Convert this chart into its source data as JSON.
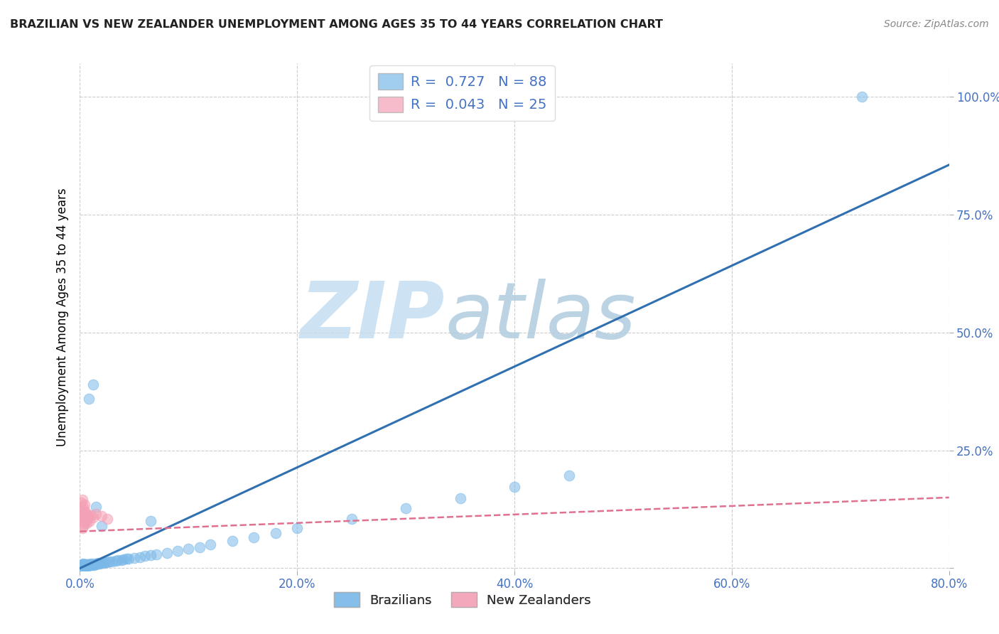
{
  "title": "BRAZILIAN VS NEW ZEALANDER UNEMPLOYMENT AMONG AGES 35 TO 44 YEARS CORRELATION CHART",
  "source": "Source: ZipAtlas.com",
  "ylabel": "Unemployment Among Ages 35 to 44 years",
  "xlim": [
    0.0,
    0.8
  ],
  "ylim": [
    -0.005,
    1.07
  ],
  "xticks": [
    0.0,
    0.2,
    0.4,
    0.6,
    0.8
  ],
  "yticks": [
    0.0,
    0.25,
    0.5,
    0.75,
    1.0
  ],
  "ytick_labels": [
    "",
    "25.0%",
    "50.0%",
    "75.0%",
    "100.0%"
  ],
  "xtick_labels": [
    "0.0%",
    "20.0%",
    "40.0%",
    "60.0%",
    "80.0%"
  ],
  "blue_color": "#7ab8e8",
  "pink_color": "#f4a0b5",
  "blue_edge_color": "#7ab8e8",
  "pink_edge_color": "#f4a0b5",
  "blue_line_color": "#3070b0",
  "pink_line_color": "#e07090",
  "grid_color": "#cccccc",
  "watermark_zip_color": "#c8dff0",
  "watermark_atlas_color": "#b8cce4",
  "legend_label_blue": "Brazilians",
  "legend_label_pink": "New Zealanders",
  "blue_R": "0.727",
  "blue_N": "88",
  "pink_R": "0.043",
  "pink_N": "25",
  "blue_scatter_x": [
    0.001,
    0.001,
    0.001,
    0.001,
    0.002,
    0.002,
    0.002,
    0.002,
    0.002,
    0.002,
    0.002,
    0.002,
    0.003,
    0.003,
    0.003,
    0.003,
    0.003,
    0.003,
    0.003,
    0.004,
    0.004,
    0.004,
    0.004,
    0.004,
    0.005,
    0.005,
    0.005,
    0.005,
    0.006,
    0.006,
    0.006,
    0.007,
    0.007,
    0.007,
    0.008,
    0.008,
    0.009,
    0.009,
    0.01,
    0.01,
    0.011,
    0.011,
    0.012,
    0.013,
    0.013,
    0.014,
    0.015,
    0.016,
    0.017,
    0.018,
    0.019,
    0.02,
    0.022,
    0.023,
    0.025,
    0.027,
    0.03,
    0.033,
    0.035,
    0.038,
    0.04,
    0.043,
    0.045,
    0.05,
    0.055,
    0.06,
    0.065,
    0.07,
    0.08,
    0.09,
    0.1,
    0.11,
    0.12,
    0.14,
    0.16,
    0.18,
    0.2,
    0.25,
    0.3,
    0.35,
    0.4,
    0.45,
    0.008,
    0.012,
    0.015,
    0.02,
    0.065,
    0.72
  ],
  "blue_scatter_y": [
    0.003,
    0.005,
    0.007,
    0.004,
    0.004,
    0.006,
    0.008,
    0.005,
    0.007,
    0.009,
    0.003,
    0.006,
    0.004,
    0.006,
    0.008,
    0.01,
    0.005,
    0.007,
    0.003,
    0.005,
    0.007,
    0.009,
    0.004,
    0.006,
    0.005,
    0.007,
    0.009,
    0.004,
    0.006,
    0.008,
    0.005,
    0.007,
    0.009,
    0.004,
    0.006,
    0.008,
    0.007,
    0.009,
    0.008,
    0.01,
    0.007,
    0.009,
    0.008,
    0.009,
    0.007,
    0.01,
    0.009,
    0.01,
    0.011,
    0.01,
    0.012,
    0.011,
    0.012,
    0.013,
    0.013,
    0.014,
    0.015,
    0.016,
    0.017,
    0.018,
    0.019,
    0.02,
    0.021,
    0.022,
    0.024,
    0.026,
    0.028,
    0.03,
    0.033,
    0.037,
    0.041,
    0.045,
    0.05,
    0.058,
    0.066,
    0.075,
    0.085,
    0.105,
    0.127,
    0.149,
    0.172,
    0.196,
    0.36,
    0.39,
    0.13,
    0.09,
    0.1,
    1.0
  ],
  "pink_scatter_x": [
    0.001,
    0.001,
    0.001,
    0.002,
    0.002,
    0.002,
    0.002,
    0.003,
    0.003,
    0.003,
    0.004,
    0.004,
    0.004,
    0.005,
    0.005,
    0.006,
    0.006,
    0.007,
    0.008,
    0.009,
    0.01,
    0.012,
    0.015,
    0.02,
    0.025
  ],
  "pink_scatter_y": [
    0.1,
    0.12,
    0.14,
    0.085,
    0.105,
    0.125,
    0.145,
    0.09,
    0.11,
    0.13,
    0.095,
    0.115,
    0.135,
    0.1,
    0.12,
    0.095,
    0.115,
    0.105,
    0.11,
    0.1,
    0.112,
    0.108,
    0.115,
    0.11,
    0.105
  ],
  "blue_line_x": [
    0.0,
    0.8
  ],
  "blue_line_y": [
    0.0,
    0.855
  ],
  "pink_line_x": [
    0.0,
    0.8
  ],
  "pink_line_y": [
    0.078,
    0.15
  ]
}
